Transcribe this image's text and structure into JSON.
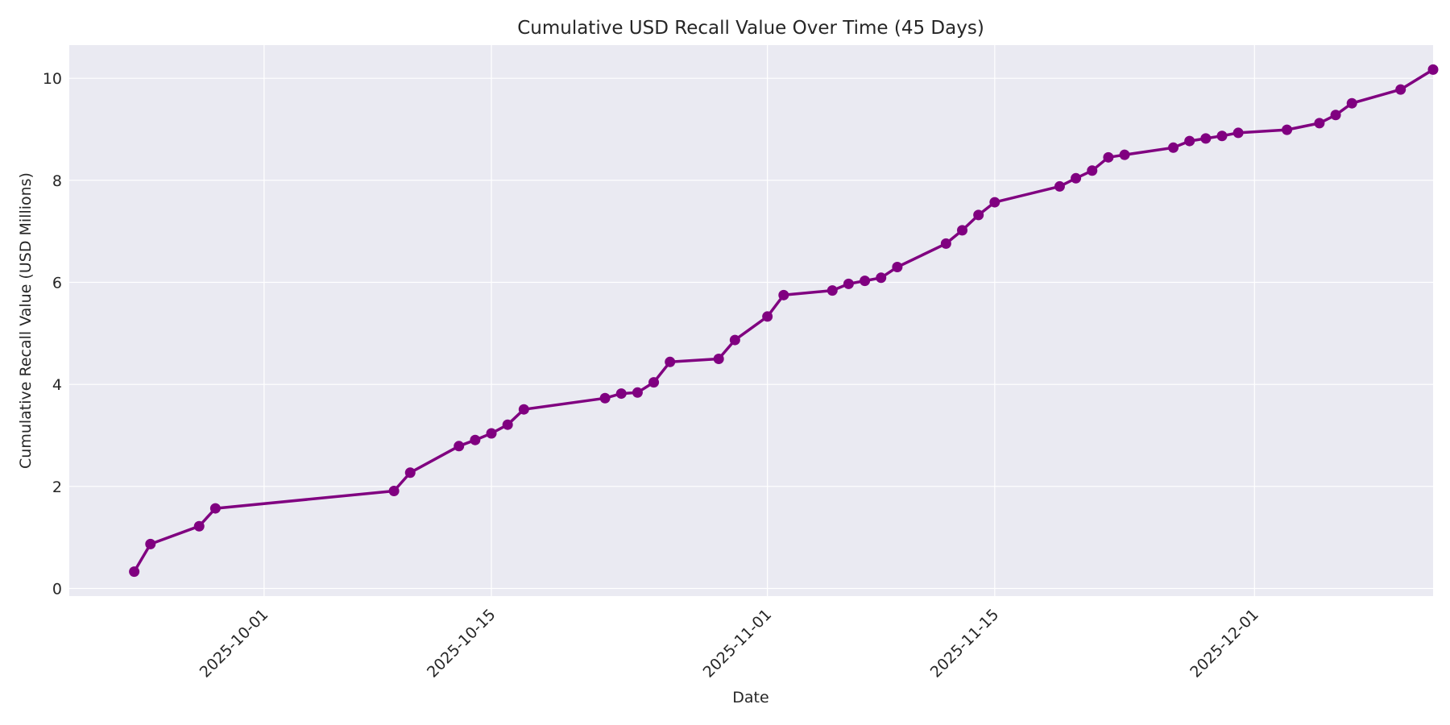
{
  "chart_data": {
    "type": "line",
    "title": "Cumulative USD Recall Value Over Time (45 Days)",
    "xlabel": "Date",
    "ylabel": "Cumulative Recall Value (USD Millions)",
    "xlim": [
      "2025-09-19",
      "2025-12-12"
    ],
    "ylim": [
      -0.15,
      10.65
    ],
    "x_ticks": [
      "2025-10-01",
      "2025-10-15",
      "2025-11-01",
      "2025-11-15",
      "2025-12-01"
    ],
    "y_ticks": [
      0,
      2,
      4,
      6,
      8,
      10
    ],
    "grid": true,
    "series": [
      {
        "color": "#800080",
        "x": [
          "2025-09-23",
          "2025-09-24",
          "2025-09-27",
          "2025-09-28",
          "2025-10-09",
          "2025-10-10",
          "2025-10-13",
          "2025-10-14",
          "2025-10-15",
          "2025-10-16",
          "2025-10-17",
          "2025-10-22",
          "2025-10-23",
          "2025-10-24",
          "2025-10-25",
          "2025-10-26",
          "2025-10-29",
          "2025-10-30",
          "2025-11-01",
          "2025-11-02",
          "2025-11-05",
          "2025-11-06",
          "2025-11-07",
          "2025-11-08",
          "2025-11-09",
          "2025-11-12",
          "2025-11-13",
          "2025-11-14",
          "2025-11-15",
          "2025-11-19",
          "2025-11-20",
          "2025-11-21",
          "2025-11-22",
          "2025-11-23",
          "2025-11-26",
          "2025-11-27",
          "2025-11-28",
          "2025-11-29",
          "2025-11-30",
          "2025-12-03",
          "2025-12-05",
          "2025-12-06",
          "2025-12-07",
          "2025-12-10",
          "2025-12-12"
        ],
        "y": [
          0.33,
          0.87,
          1.22,
          1.57,
          1.91,
          2.27,
          2.79,
          2.91,
          3.04,
          3.21,
          3.51,
          3.73,
          3.82,
          3.84,
          4.04,
          4.44,
          4.5,
          4.87,
          5.33,
          5.75,
          5.84,
          5.97,
          6.03,
          6.09,
          6.3,
          6.76,
          7.02,
          7.32,
          7.57,
          7.88,
          8.04,
          8.19,
          8.45,
          8.5,
          8.64,
          8.77,
          8.82,
          8.87,
          8.93,
          8.99,
          9.12,
          9.28,
          9.51,
          9.78,
          10.17
        ]
      }
    ]
  }
}
